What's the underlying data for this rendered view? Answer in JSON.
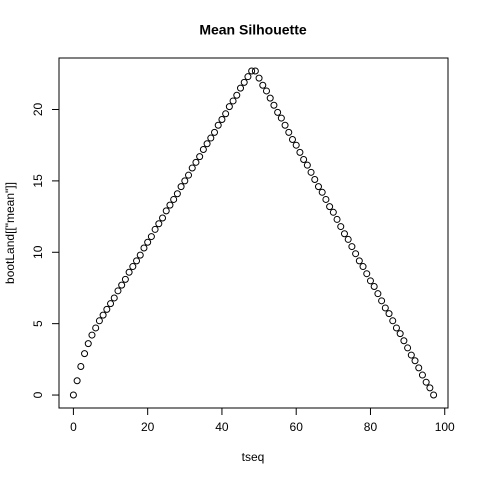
{
  "chart_data": {
    "type": "scatter",
    "title": "Mean Silhouette",
    "x_label": "tseq",
    "y_label": "bootLand[[\"mean\"]]",
    "x": [
      0,
      1,
      2,
      3,
      4,
      5,
      6,
      7,
      8,
      9,
      10,
      11,
      12,
      13,
      14,
      15,
      16,
      17,
      18,
      19,
      20,
      21,
      22,
      23,
      24,
      25,
      26,
      27,
      28,
      29,
      30,
      31,
      32,
      33,
      34,
      35,
      36,
      37,
      38,
      39,
      40,
      41,
      42,
      43,
      44,
      45,
      46,
      47,
      48,
      49,
      50,
      51,
      52,
      53,
      54,
      55,
      56,
      57,
      58,
      59,
      60,
      61,
      62,
      63,
      64,
      65,
      66,
      67,
      68,
      69,
      70,
      71,
      72,
      73,
      74,
      75,
      76,
      77,
      78,
      79,
      80,
      81,
      82,
      83,
      84,
      85,
      86,
      87,
      88,
      89,
      90,
      91,
      92,
      93,
      94,
      95,
      96,
      97
    ],
    "values": [
      0,
      1.0,
      2.0,
      2.9,
      3.6,
      4.2,
      4.7,
      5.2,
      5.6,
      6.0,
      6.4,
      6.8,
      7.3,
      7.7,
      8.1,
      8.6,
      9.0,
      9.4,
      9.8,
      10.3,
      10.7,
      11.1,
      11.6,
      12.0,
      12.4,
      12.9,
      13.3,
      13.7,
      14.1,
      14.6,
      15.0,
      15.4,
      15.9,
      16.3,
      16.7,
      17.2,
      17.6,
      18.0,
      18.4,
      18.9,
      19.3,
      19.7,
      20.2,
      20.6,
      21.0,
      21.5,
      21.9,
      22.3,
      22.7,
      22.7,
      22.2,
      21.7,
      21.3,
      20.8,
      20.3,
      19.8,
      19.4,
      18.9,
      18.4,
      17.9,
      17.5,
      17.0,
      16.5,
      16.1,
      15.6,
      15.1,
      14.6,
      14.2,
      13.7,
      13.2,
      12.8,
      12.3,
      11.8,
      11.3,
      10.9,
      10.4,
      9.9,
      9.4,
      9.0,
      8.5,
      8.0,
      7.6,
      7.1,
      6.6,
      6.1,
      5.7,
      5.2,
      4.7,
      4.3,
      3.8,
      3.3,
      2.8,
      2.4,
      1.9,
      1.4,
      0.9,
      0.5,
      0.0
    ],
    "color": "#000000",
    "xlim": [
      -3.88,
      100.88
    ],
    "xticks": [
      0,
      20,
      40,
      60,
      80,
      100
    ],
    "ylim": [
      -0.908,
      23.608
    ],
    "yticks": [
      0,
      5,
      10,
      15,
      20
    ]
  }
}
